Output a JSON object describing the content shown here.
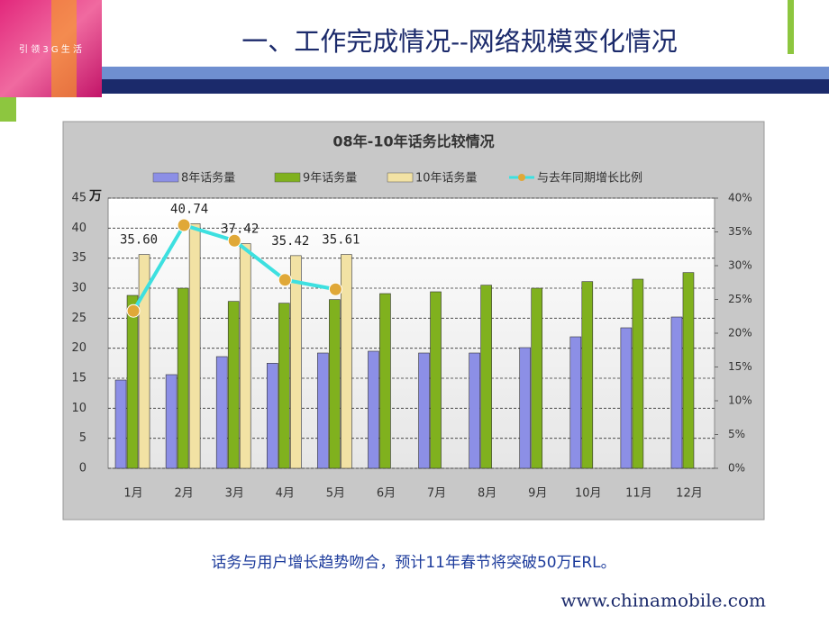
{
  "header": {
    "title": "一、工作完成情况--网络规模变化情况",
    "logo_text": "引 领 3 G 生 活"
  },
  "chart_data": {
    "type": "bar",
    "title": "08年-10年话务比较情况",
    "ylabel": "万",
    "categories": [
      "1月",
      "2月",
      "3月",
      "4月",
      "5月",
      "6月",
      "7月",
      "8月",
      "9月",
      "10月",
      "11月",
      "12月"
    ],
    "series": [
      {
        "name": "8年话务量",
        "color": "#8c8fe6",
        "values": [
          14.7,
          15.6,
          18.6,
          17.5,
          19.2,
          19.5,
          19.2,
          19.2,
          20.1,
          21.9,
          23.4,
          25.2
        ]
      },
      {
        "name": "9年话务量",
        "color": "#80b11e",
        "values": [
          28.8,
          30,
          27.8,
          27.5,
          28.1,
          29.1,
          29.4,
          30.5,
          30,
          31.1,
          31.5,
          32.6
        ]
      },
      {
        "name": "10年话务量",
        "color": "#f2e2a4",
        "values": [
          35.6,
          40.74,
          37.42,
          35.42,
          35.61,
          null,
          null,
          null,
          null,
          null,
          null,
          null
        ],
        "value_labels": [
          "35.60",
          "40.74",
          "37.42",
          "35.42",
          "35.61",
          null,
          null,
          null,
          null,
          null,
          null,
          null
        ]
      },
      {
        "name": "与去年同期增长比例",
        "type": "line",
        "axis": "y2",
        "color": "#3de0e0",
        "marker_color": "#e0a838",
        "values": [
          23.3,
          36,
          33.7,
          27.9,
          26.5,
          null,
          null,
          null,
          null,
          null,
          null,
          null
        ]
      }
    ],
    "ylim": [
      0,
      45
    ],
    "yticks": [
      0,
      5,
      10,
      15,
      20,
      25,
      30,
      35,
      40,
      45
    ],
    "y2lim": [
      0,
      40
    ],
    "y2ticks": [
      {
        "value": 0,
        "label": "0%"
      },
      {
        "value": 5,
        "label": "5%"
      },
      {
        "value": 10,
        "label": "10%"
      },
      {
        "value": 15,
        "label": "15%"
      },
      {
        "value": 20,
        "label": "20%"
      },
      {
        "value": 25,
        "label": "25%"
      },
      {
        "value": 30,
        "label": "30%"
      },
      {
        "value": 35,
        "label": "35%"
      },
      {
        "value": 40,
        "label": "40%"
      }
    ],
    "grid": true
  },
  "footer": {
    "note": "话务与用户增长趋势吻合，预计11年春节将突破50万ERL。",
    "url": "www.chinamobile.com"
  }
}
